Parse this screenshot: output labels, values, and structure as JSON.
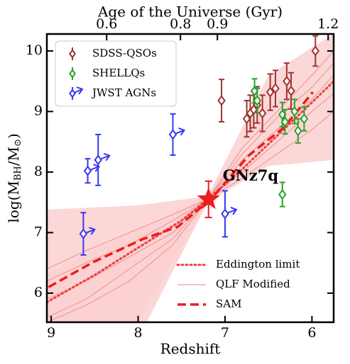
{
  "chart_data": {
    "type": "scatter",
    "xlabel": "Redshift",
    "x2label": "Age of the Universe (Gyr)",
    "ylabel_parts": [
      "log(M",
      "BH",
      "/M",
      "⊙",
      ")"
    ],
    "xlim": [
      9.05,
      5.75
    ],
    "xticks": [
      9,
      8,
      7,
      6
    ],
    "ylim": [
      5.52,
      10.28
    ],
    "yticks": [
      6,
      7,
      8,
      9,
      10
    ],
    "x2lim": [
      0.438,
      1.215
    ],
    "x2ticks": [
      0.6,
      0.8,
      0.9,
      1.2
    ],
    "bands": [
      {
        "color": "#fbd0d0",
        "x": [
          9.05,
          8.0,
          7.2,
          6.5,
          5.75
        ],
        "lower": [
          5.52,
          5.52,
          7.5,
          8.1,
          8.2
        ],
        "upper": [
          7.38,
          7.45,
          7.6,
          9.6,
          10.28
        ]
      },
      {
        "color": "#fbd0d0",
        "x": [
          9.05,
          8.4,
          7.9,
          7.2
        ],
        "lower": [
          5.52,
          5.52,
          5.52,
          7.5
        ],
        "upper": [
          6.3,
          6.8,
          7.1,
          7.6
        ]
      }
    ],
    "qlf": {
      "name": "QLF Modified",
      "color": "#f19a9a",
      "x": [
        9.05,
        8.6,
        8.1,
        7.6,
        7.2,
        6.8,
        6.4,
        6.0,
        5.75
      ],
      "curves": [
        [
          5.9,
          6.2,
          6.6,
          7.0,
          7.55,
          8.2,
          8.7,
          9.2,
          9.6
        ],
        [
          5.6,
          5.9,
          6.4,
          6.9,
          7.55,
          8.4,
          9.0,
          9.6,
          10.0
        ],
        [
          6.2,
          6.5,
          6.8,
          7.2,
          7.55,
          7.9,
          8.3,
          8.7,
          9.0
        ],
        [
          5.52,
          5.8,
          6.2,
          6.8,
          7.55,
          8.3,
          8.9,
          9.4,
          9.8
        ],
        [
          6.4,
          6.7,
          7.0,
          7.3,
          7.55,
          8.0,
          8.5,
          9.0,
          9.3
        ]
      ]
    },
    "eddington": {
      "name": "Eddington limit",
      "color": "#e84040",
      "x": [
        9.05,
        8.5,
        8.0,
        7.5,
        7.2,
        6.8,
        6.4,
        6.0,
        5.75
      ],
      "values": [
        5.85,
        6.3,
        6.75,
        7.2,
        7.55,
        8.05,
        8.6,
        9.15,
        9.5
      ]
    },
    "sam": {
      "name": "SAM",
      "color": "#ee1c1c",
      "x": [
        9.03,
        8.52,
        7.95,
        7.54,
        7.15,
        6.73,
        6.32,
        5.99
      ],
      "values": [
        6.1,
        6.51,
        6.89,
        7.1,
        7.57,
        8.27,
        8.74,
        9.32
      ]
    },
    "series": [
      {
        "name": "SDSS-QSOs",
        "color": "#9c3434",
        "lower_limit": false,
        "x": [
          7.04,
          6.75,
          6.71,
          6.67,
          6.63,
          6.57,
          6.48,
          6.42,
          6.29,
          6.24,
          5.96
        ],
        "values": [
          9.18,
          8.88,
          8.97,
          9.03,
          9.11,
          8.97,
          9.32,
          9.38,
          9.5,
          9.34,
          10.0
        ],
        "errors": [
          0.35,
          0.3,
          0.3,
          0.3,
          0.3,
          0.3,
          0.3,
          0.3,
          0.3,
          0.3,
          0.25
        ]
      },
      {
        "name": "SHELLQs",
        "color": "#2ca02c",
        "lower_limit": false,
        "x": [
          6.66,
          6.63,
          6.34,
          6.31,
          6.2,
          6.16,
          6.09,
          6.34
        ],
        "values": [
          9.34,
          9.18,
          8.95,
          8.83,
          9.0,
          8.68,
          8.88,
          7.63
        ],
        "errors": [
          0.2,
          0.2,
          0.2,
          0.2,
          0.2,
          0.2,
          0.2,
          0.2
        ]
      },
      {
        "name": "JWST AGNs",
        "color": "#3838f0",
        "lower_limit": true,
        "x": [
          8.63,
          8.58,
          8.46,
          7.6,
          7.0
        ],
        "values": [
          6.98,
          8.02,
          8.2,
          8.62,
          7.31
        ],
        "errors": [
          0.35,
          0.2,
          0.42,
          0.34,
          0.38
        ]
      }
    ],
    "highlight": {
      "label": "GNz7q",
      "color": "#ee1c1c",
      "x": 7.19,
      "value": 7.55,
      "error": 0.3
    }
  }
}
